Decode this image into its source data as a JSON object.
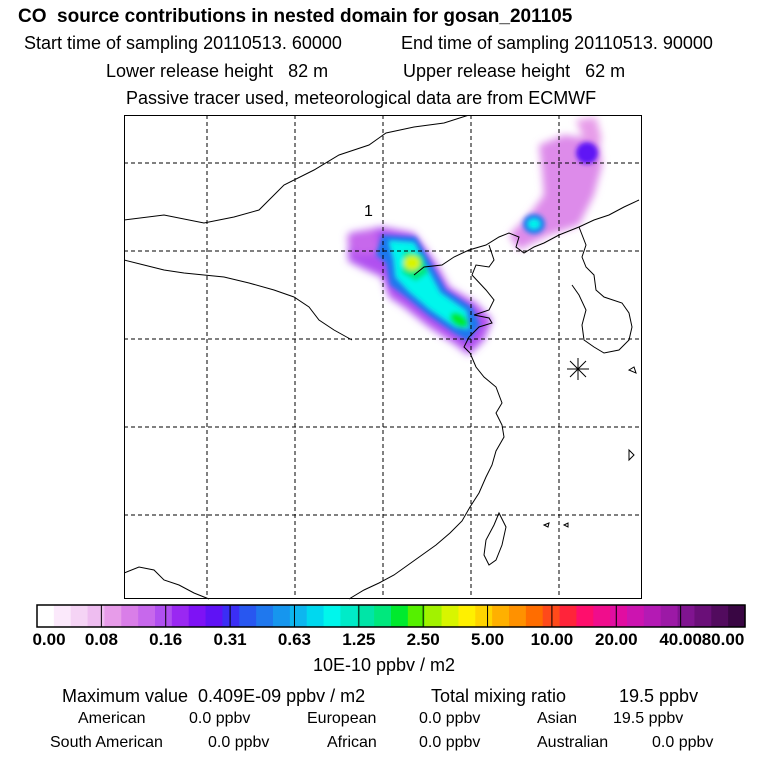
{
  "header": {
    "title": "CO  source contributions in nested domain for gosan_201105",
    "start_label": "Start time of sampling 20110513. 60000",
    "end_label": "End time of sampling 20110513. 90000",
    "lower_label": "Lower release height   82 m",
    "upper_label": "Upper release height   62 m",
    "note": "Passive tracer used, meteorological data are from ECMWF"
  },
  "chart_data": {
    "type": "heatmap",
    "title": "CO  source contributions in nested domain for gosan_201105",
    "colorbar": {
      "tick_labels": [
        "0.00",
        "0.08",
        "0.16",
        "0.31",
        "0.63",
        "1.25",
        "2.50",
        "5.00",
        "10.00",
        "20.00",
        "40.00",
        "80.00"
      ],
      "units": "10E-10 ppbv / m2",
      "colors": [
        "#ffffff",
        "#fbe9fb",
        "#f5d4f5",
        "#eebdf0",
        "#e79ce9",
        "#d97ee8",
        "#c768ec",
        "#b04ff0",
        "#9a28f2",
        "#7e12f5",
        "#5f12f5",
        "#3b2ef5",
        "#2857f0",
        "#1f78ee",
        "#1696ee",
        "#0db6ef",
        "#00d8ef",
        "#00f6ec",
        "#00ebc8",
        "#00e5a7",
        "#00e87d",
        "#00ea2e",
        "#55f000",
        "#a2f200",
        "#d8f500",
        "#fff000",
        "#ffd400",
        "#ffb000",
        "#ff9100",
        "#ff6d00",
        "#ff4a1a",
        "#ff243a",
        "#ff0e6c",
        "#f00d8c",
        "#e10da1",
        "#cc14b0",
        "#b41ab4",
        "#9c19a6",
        "#801490",
        "#6a0f78",
        "#520b5e",
        "#390643"
      ]
    },
    "plume_label": "1",
    "receptor_marker": "receptor-asterisk"
  },
  "stats": {
    "max_label": "Maximum value  0.409E-09 ppbv / m2",
    "total_label": "Total mixing ratio",
    "total_value": "19.5 ppbv",
    "sources": [
      {
        "name": "American",
        "value": "0.0 ppbv"
      },
      {
        "name": "European",
        "value": "0.0 ppbv"
      },
      {
        "name": "Asian",
        "value": "19.5 ppbv"
      },
      {
        "name": "South American",
        "value": "0.0 ppbv"
      },
      {
        "name": "African",
        "value": "0.0 ppbv"
      },
      {
        "name": "Australian",
        "value": "0.0 ppbv"
      }
    ]
  }
}
